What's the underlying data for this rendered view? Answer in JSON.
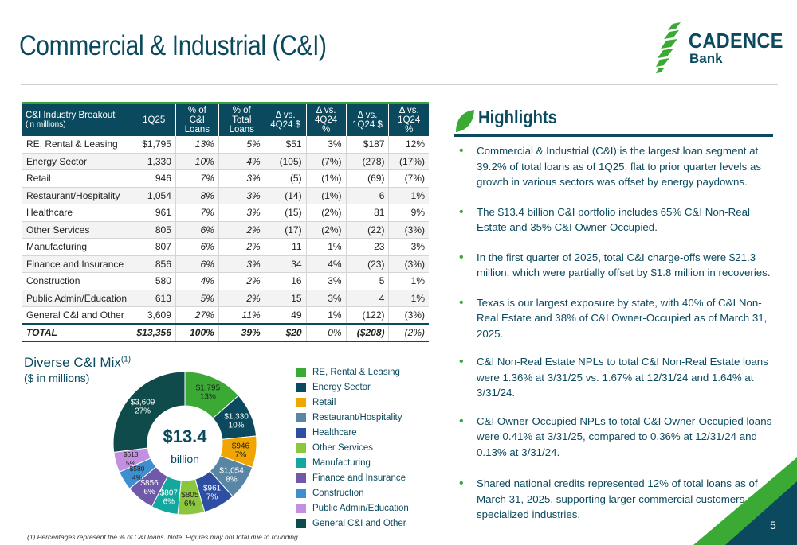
{
  "page": {
    "title": "Commercial & Industrial (C&I)",
    "page_number": "5",
    "footnote": "(1) Percentages represent the % of C&I loans. Note: Figures may not total due to rounding."
  },
  "logo": {
    "name": "CADENCE",
    "sub": "Bank"
  },
  "table": {
    "headers": [
      {
        "main": "C&I Industry Breakout",
        "sub": "(in millions)"
      },
      {
        "main": "1Q25"
      },
      {
        "main": "% of C&I",
        "sub": "Loans"
      },
      {
        "main": "% of Total",
        "sub": "Loans"
      },
      {
        "main": "Δ vs.",
        "sub": "4Q24 $"
      },
      {
        "main": "Δ vs.",
        "sub": "4Q24 %"
      },
      {
        "main": "Δ vs.",
        "sub": "1Q24 $"
      },
      {
        "main": "Δ vs.",
        "sub": "1Q24 %"
      }
    ],
    "rows": [
      [
        "RE, Rental & Leasing",
        "$1,795",
        "13%",
        "5%",
        "$51",
        "3%",
        "$187",
        "12%"
      ],
      [
        "Energy Sector",
        "1,330",
        "10%",
        "4%",
        "(105)",
        "(7%)",
        "(278)",
        "(17%)"
      ],
      [
        "Retail",
        "946",
        "7%",
        "3%",
        "(5)",
        "(1%)",
        "(69)",
        "(7%)"
      ],
      [
        "Restaurant/Hospitality",
        "1,054",
        "8%",
        "3%",
        "(14)",
        "(1%)",
        "6",
        "1%"
      ],
      [
        "Healthcare",
        "961",
        "7%",
        "3%",
        "(15)",
        "(2%)",
        "81",
        "9%"
      ],
      [
        "Other Services",
        "805",
        "6%",
        "2%",
        "(17)",
        "(2%)",
        "(22)",
        "(3%)"
      ],
      [
        "Manufacturing",
        "807",
        "6%",
        "2%",
        "11",
        "1%",
        "23",
        "3%"
      ],
      [
        "Finance and Insurance",
        "856",
        "6%",
        "3%",
        "34",
        "4%",
        "(23)",
        "(3%)"
      ],
      [
        "Construction",
        "580",
        "4%",
        "2%",
        "16",
        "3%",
        "5",
        "1%"
      ],
      [
        "Public Admin/Education",
        "613",
        "5%",
        "2%",
        "15",
        "3%",
        "4",
        "1%"
      ],
      [
        "General C&I and Other",
        "3,609",
        "27%",
        "11%",
        "49",
        "1%",
        "(122)",
        "(3%)"
      ]
    ],
    "total": [
      "TOTAL",
      "$13,356",
      "100%",
      "39%",
      "$20",
      "0%",
      "($208)",
      "(2%)"
    ]
  },
  "mix": {
    "title": "Diverse C&I Mix",
    "title_sup": "(1)",
    "subtitle": "($ in millions)",
    "center_value": "$13.4",
    "center_unit": "billion"
  },
  "chart_data": {
    "type": "pie",
    "categories": [
      "RE, Rental & Leasing",
      "Energy Sector",
      "Retail",
      "Restaurant/Hospitality",
      "Healthcare",
      "Other Services",
      "Manufacturing",
      "Finance and Insurance",
      "Construction",
      "Public Admin/Education",
      "General C&I and Other"
    ],
    "values": [
      1795,
      1330,
      946,
      1054,
      961,
      805,
      807,
      856,
      580,
      613,
      3609
    ],
    "labels": [
      [
        "$1,795",
        "13%"
      ],
      [
        "$1,330",
        "10%"
      ],
      [
        "$946",
        "7%"
      ],
      [
        "$1,054",
        "8%"
      ],
      [
        "$961",
        "7%"
      ],
      [
        "$805",
        "6%"
      ],
      [
        "$807",
        "6%"
      ],
      [
        "$856",
        "6%"
      ],
      [
        "$580",
        "4%"
      ],
      [
        "$613",
        "5%"
      ],
      [
        "$3,609",
        "27%"
      ]
    ],
    "colors": [
      "#3aaa35",
      "#0b4a5e",
      "#f0a500",
      "#5a86a5",
      "#2e4fa1",
      "#8cc63f",
      "#13a89e",
      "#7059a8",
      "#3f8fd0",
      "#c38fe0",
      "#0f4b4b"
    ],
    "legend_position": "right"
  },
  "highlights": {
    "title": "Highlights",
    "items": [
      "Commercial & Industrial (C&I) is the largest loan segment at 39.2% of total loans as of 1Q25, flat to prior quarter levels as growth in various sectors was offset by energy paydowns.",
      "The $13.4 billion C&I portfolio includes 65% C&I Non-Real Estate and 35% C&I Owner-Occupied.",
      "In the first quarter of 2025, total C&I charge-offs were $21.3 million, which were partially offset by $1.8 million in recoveries.",
      "Texas is our largest exposure by state, with 40% of C&I Non-Real Estate and 38% of C&I Owner-Occupied as of March 31, 2025.",
      "C&I Non-Real Estate NPLs to total C&I Non-Real Estate loans were 1.36% at 3/31/25 vs. 1.67% at 12/31/24 and 1.64% at 3/31/24.",
      "C&I Owner-Occupied NPLs to total C&I Owner-Occupied loans were 0.41% at 3/31/25, compared to 0.36% at 12/31/24 and 0.13% at 3/31/24.",
      "Shared national credits represented 12% of total loans as of March 31, 2025, supporting larger commercial customers and specialized industries."
    ]
  }
}
